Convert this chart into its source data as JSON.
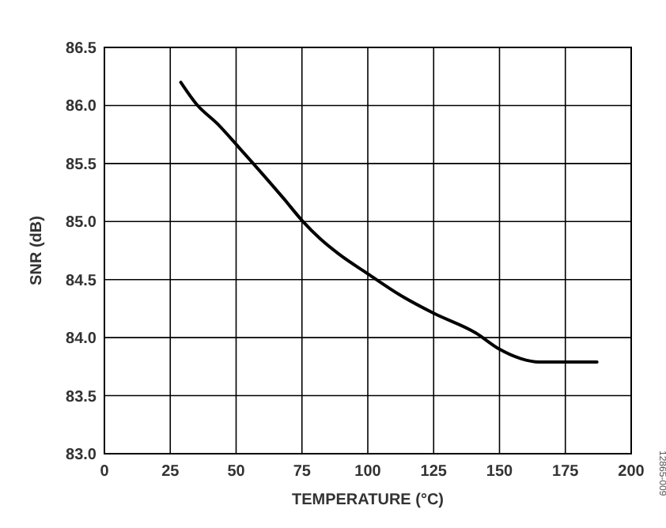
{
  "chart_data": {
    "type": "line",
    "xlabel": "TEMPERATURE (°C)",
    "ylabel": "SNR (dB)",
    "x": [
      29,
      35,
      43,
      51,
      60,
      68,
      75,
      82,
      89,
      100,
      112,
      125,
      141,
      150,
      158,
      165,
      175,
      187
    ],
    "series": [
      {
        "color": "#000000",
        "values": [
          86.2,
          86.01,
          85.84,
          85.64,
          85.41,
          85.2,
          85.01,
          84.85,
          84.72,
          84.55,
          84.37,
          84.21,
          84.04,
          83.9,
          83.82,
          83.79,
          83.79,
          83.79
        ]
      }
    ],
    "xlim": [
      0,
      200
    ],
    "xticks": [
      0,
      25,
      50,
      75,
      100,
      125,
      150,
      175,
      200
    ],
    "ylim": [
      83.0,
      86.5
    ],
    "yticks": [
      {
        "value": 83.0,
        "label": "83.0"
      },
      {
        "value": 83.5,
        "label": "83.5"
      },
      {
        "value": 84.0,
        "label": "84.0"
      },
      {
        "value": 84.5,
        "label": "84.5"
      },
      {
        "value": 85.0,
        "label": "85.0"
      },
      {
        "value": 85.5,
        "label": "85.5"
      },
      {
        "value": 86.0,
        "label": "86.0"
      },
      {
        "value": 86.5,
        "label": "86.5"
      }
    ],
    "grid": true,
    "marker": "none",
    "line_style": "solid",
    "annotations": [
      "12865-009"
    ]
  }
}
